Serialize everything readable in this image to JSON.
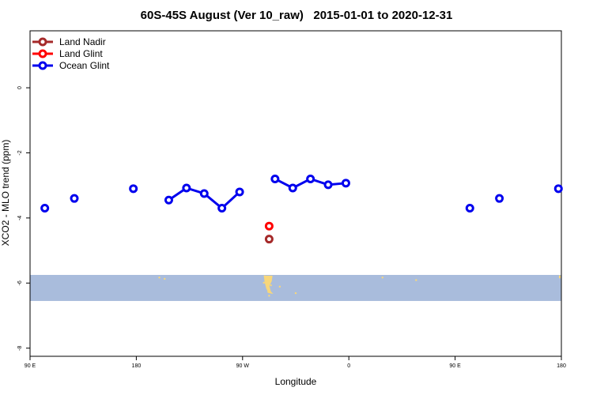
{
  "chart_data": {
    "type": "line",
    "title": "60S-45S August (Ver 10_raw)   2015-01-01 to 2020-12-31",
    "xlabel": "Longitude",
    "ylabel": "XCO2 - MLO trend (ppm)",
    "x_axis": {
      "range_positions": [
        0,
        360
      ],
      "ticks": [
        {
          "pos": 0,
          "label": "90 E"
        },
        {
          "pos": 90,
          "label": "180"
        },
        {
          "pos": 180,
          "label": "90 W"
        },
        {
          "pos": 270,
          "label": "0"
        },
        {
          "pos": 360,
          "label": "90 E"
        },
        {
          "pos": 450,
          "label": "180"
        }
      ],
      "view": [
        0,
        450
      ]
    },
    "ylim": [
      -8.25,
      1.75
    ],
    "yticks": [
      0,
      -2,
      -4,
      -6,
      -8
    ],
    "grid": false,
    "legend": {
      "placement": "top-left",
      "entries": [
        {
          "name": "Land Nadir",
          "color": "#a52a2a"
        },
        {
          "name": "Land Glint",
          "color": "#ff0000"
        },
        {
          "name": "Ocean Glint",
          "color": "#0000ee"
        }
      ]
    },
    "land_band": {
      "y_range": [
        -6.55,
        -5.75
      ],
      "color": "#a9bcdc",
      "land_color": "#f8d77a"
    },
    "series": [
      {
        "name": "Land Nadir",
        "color": "#a52a2a",
        "segments": [
          [
            {
              "x": 202.5,
              "y": -4.65
            }
          ]
        ]
      },
      {
        "name": "Land Glint",
        "color": "#ff0000",
        "segments": [
          [
            {
              "x": 202.5,
              "y": -4.25
            }
          ]
        ]
      },
      {
        "name": "Ocean Glint",
        "color": "#0000ee",
        "segments": [
          [
            {
              "x": 12.5,
              "y": -3.7
            }
          ],
          [
            {
              "x": 37.5,
              "y": -3.4
            }
          ],
          [
            {
              "x": 87.5,
              "y": -3.1
            }
          ],
          [
            {
              "x": 117.5,
              "y": -3.45
            },
            {
              "x": 132.5,
              "y": -3.08
            },
            {
              "x": 147.5,
              "y": -3.25
            },
            {
              "x": 162.5,
              "y": -3.7
            },
            {
              "x": 177.5,
              "y": -3.2
            }
          ],
          [
            {
              "x": 207.5,
              "y": -2.8
            },
            {
              "x": 222.5,
              "y": -3.08
            },
            {
              "x": 237.5,
              "y": -2.8
            },
            {
              "x": 252.5,
              "y": -2.98
            },
            {
              "x": 267.5,
              "y": -2.93
            }
          ],
          [
            {
              "x": 372.5,
              "y": -3.7
            }
          ],
          [
            {
              "x": 397.5,
              "y": -3.4
            }
          ],
          [
            {
              "x": 447.5,
              "y": -3.1
            }
          ]
        ]
      }
    ]
  }
}
